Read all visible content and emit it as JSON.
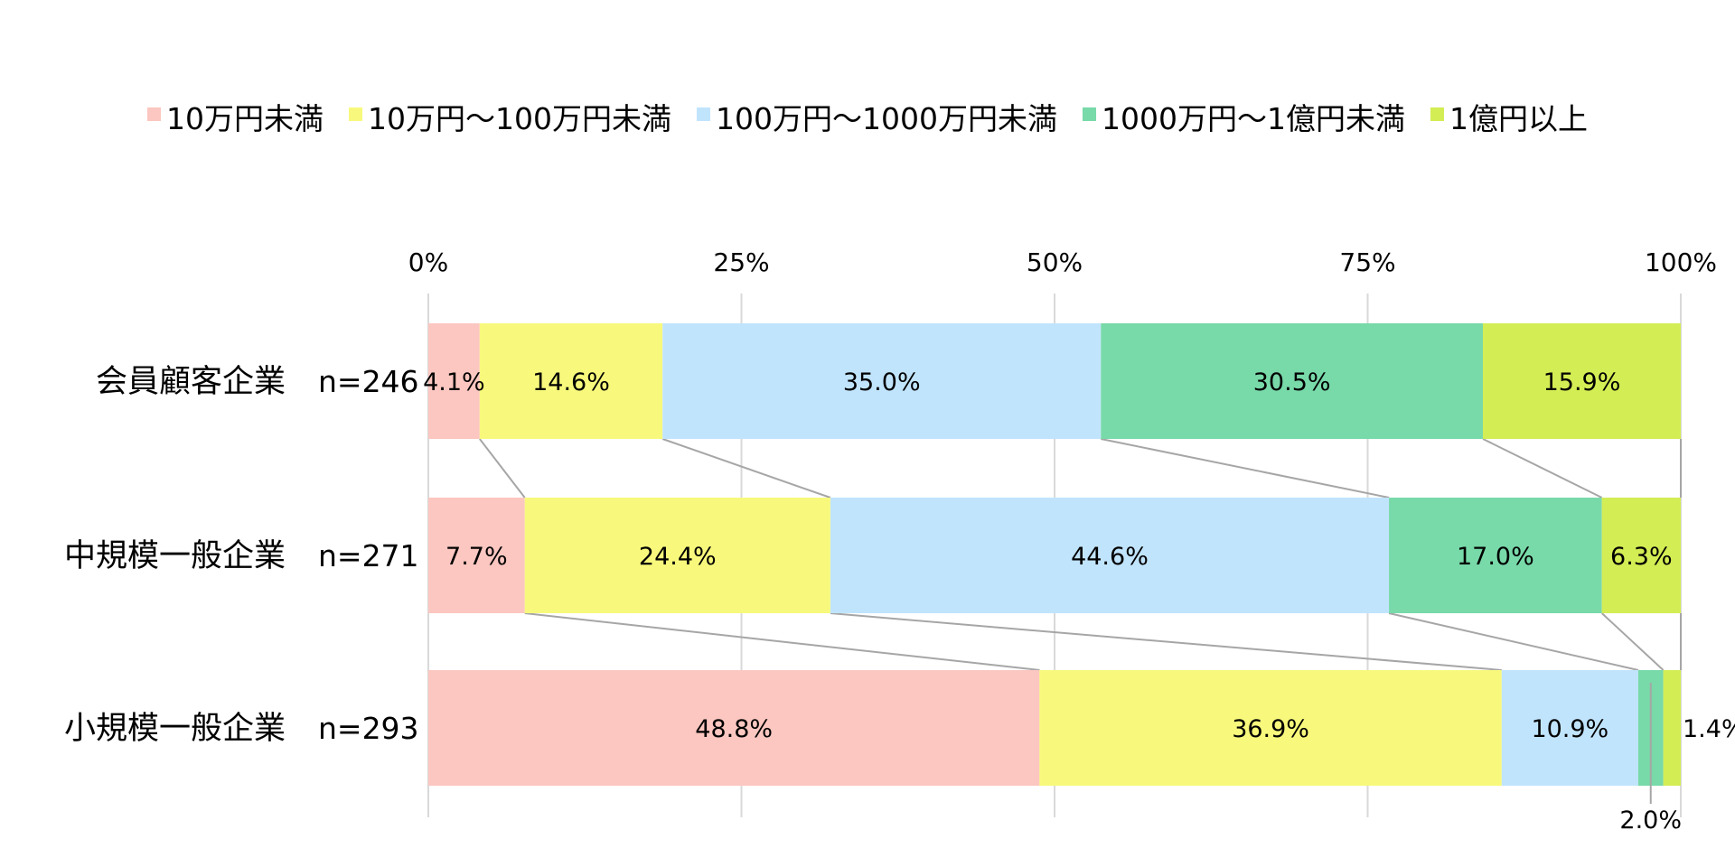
{
  "chart_data": {
    "type": "bar",
    "orientation": "horizontal",
    "stacked": "100%",
    "xlim": [
      0,
      100
    ],
    "x_ticks": [
      "0%",
      "25%",
      "50%",
      "75%",
      "100%"
    ],
    "grid": true,
    "legend_position": "top",
    "categories": [
      "会員顧客企業",
      "中規模一般企業",
      "小規模一般企業"
    ],
    "sample_sizes": [
      "n=246",
      "n=271",
      "n=293"
    ],
    "series": [
      {
        "name": "10万円未満",
        "color": "#fbc7c0",
        "values": [
          4.1,
          7.7,
          48.8
        ],
        "labels": [
          "4.1%",
          "7.7%",
          "48.8%"
        ]
      },
      {
        "name": "10万円～100万円未満",
        "color": "#f8f97c",
        "values": [
          14.6,
          24.4,
          36.9
        ],
        "labels": [
          "14.6%",
          "24.4%",
          "36.9%"
        ]
      },
      {
        "name": "100万円～1000万円未満",
        "color": "#c1e4fd",
        "values": [
          35.0,
          44.6,
          10.9
        ],
        "labels": [
          "35.0%",
          "44.6%",
          "10.9%"
        ]
      },
      {
        "name": "1000万円～1億円未満",
        "color": "#78d9a9",
        "values": [
          30.5,
          17.0,
          2.0
        ],
        "labels": [
          "30.5%",
          "17.0%",
          "2.0%"
        ]
      },
      {
        "name": "1億円以上",
        "color": "#d3ed54",
        "values": [
          15.9,
          6.3,
          1.4
        ],
        "labels": [
          "15.9%",
          "6.3%",
          "1.4%"
        ]
      }
    ],
    "connector_color": "#a6a6a6",
    "grid_color": "#d9d9d9"
  }
}
